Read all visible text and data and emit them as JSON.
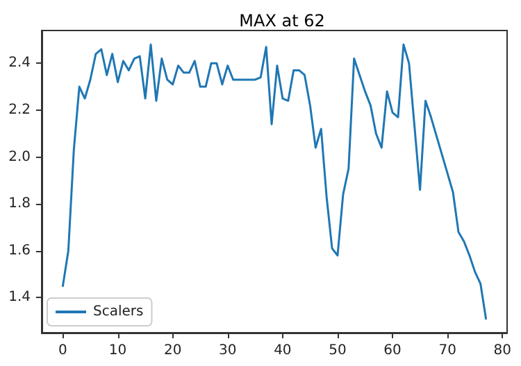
{
  "chart_data": {
    "type": "line",
    "title": "MAX at 62",
    "x": [
      0,
      1,
      2,
      3,
      4,
      5,
      6,
      7,
      8,
      9,
      10,
      11,
      12,
      13,
      14,
      15,
      16,
      17,
      18,
      19,
      20,
      21,
      22,
      23,
      24,
      25,
      26,
      27,
      28,
      29,
      30,
      31,
      32,
      33,
      34,
      35,
      36,
      37,
      38,
      39,
      40,
      41,
      42,
      43,
      44,
      45,
      46,
      47,
      48,
      49,
      50,
      51,
      52,
      53,
      54,
      55,
      56,
      57,
      58,
      59,
      60,
      61,
      62,
      63,
      64,
      65,
      66,
      67,
      68,
      69,
      70,
      71,
      72,
      73,
      74,
      75,
      76,
      77
    ],
    "series": [
      {
        "name": "Scalers",
        "color": "#1f77b4",
        "values": [
          1.45,
          1.6,
          2.03,
          2.3,
          2.25,
          2.33,
          2.44,
          2.46,
          2.35,
          2.44,
          2.32,
          2.41,
          2.37,
          2.42,
          2.43,
          2.25,
          2.48,
          2.24,
          2.42,
          2.33,
          2.31,
          2.39,
          2.36,
          2.36,
          2.41,
          2.3,
          2.3,
          2.4,
          2.4,
          2.31,
          2.39,
          2.33,
          2.33,
          2.33,
          2.33,
          2.33,
          2.34,
          2.47,
          2.14,
          2.39,
          2.25,
          2.24,
          2.37,
          2.37,
          2.35,
          2.22,
          2.04,
          2.12,
          1.83,
          1.61,
          1.58,
          1.84,
          1.95,
          2.42,
          2.35,
          2.28,
          2.22,
          2.1,
          2.04,
          2.28,
          2.19,
          2.17,
          2.48,
          2.4,
          2.13,
          1.86,
          2.24,
          2.17,
          2.09,
          2.01,
          1.93,
          1.85,
          1.68,
          1.64,
          1.58,
          1.51,
          1.46,
          1.31
        ]
      }
    ],
    "xlim": [
      -3.85,
      80.85
    ],
    "ylim": [
      1.25,
      2.54
    ],
    "xticks": [
      0,
      10,
      20,
      30,
      40,
      50,
      60,
      70,
      80
    ],
    "yticks": [
      1.4,
      1.6,
      1.8,
      {
        "value": 2,
        "label": "2.0"
      },
      2.2,
      2.4
    ],
    "legend": "bottom left",
    "marker": "none",
    "line_style": "solid"
  }
}
